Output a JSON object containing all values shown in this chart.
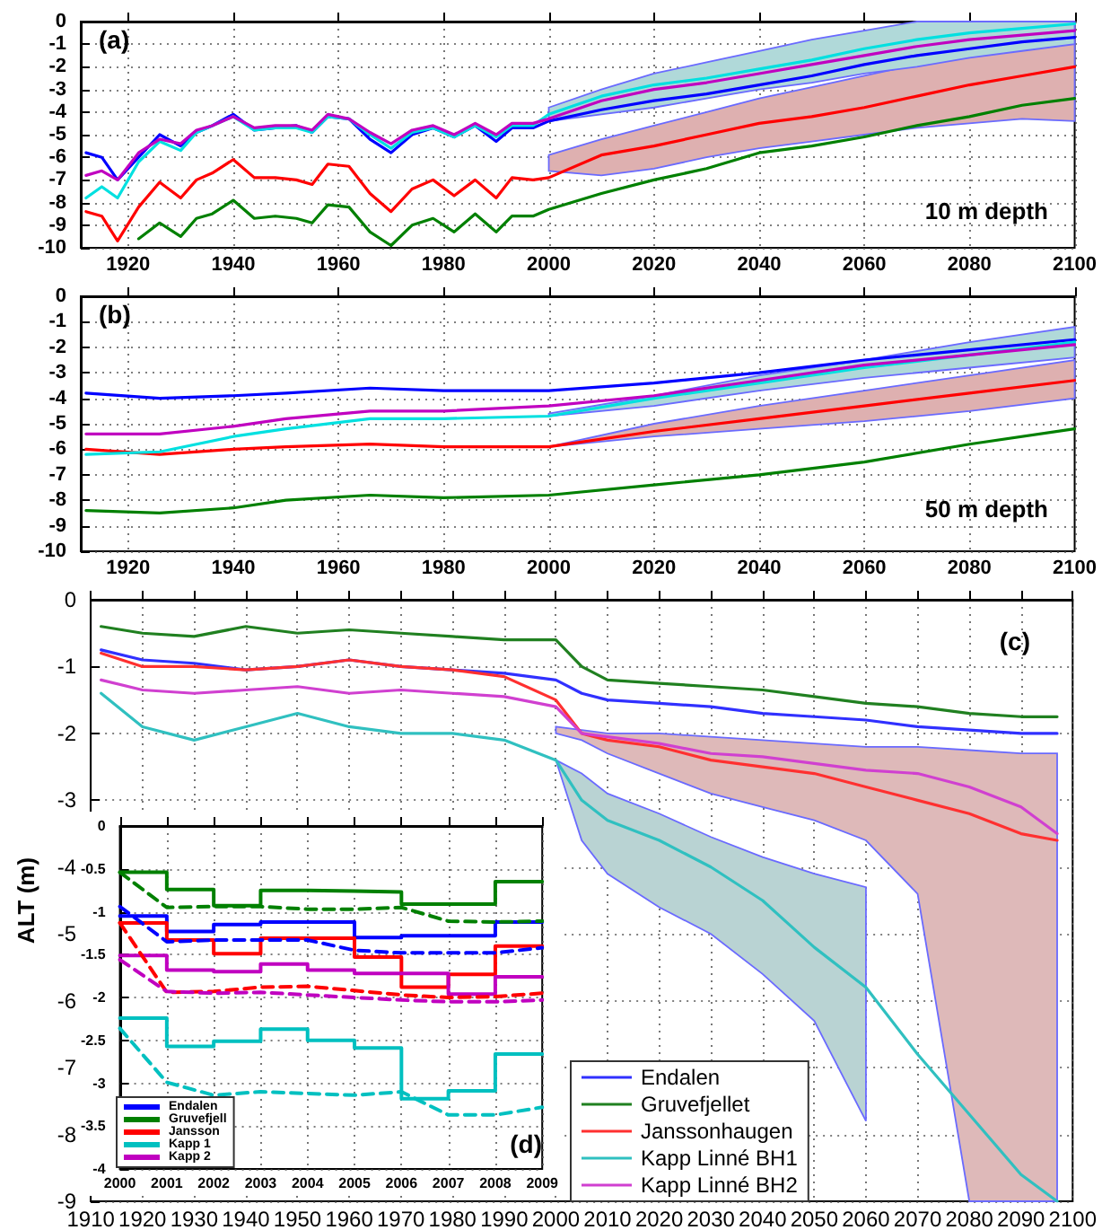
{
  "chart_data": [
    {
      "type": "line",
      "xlim": [
        1911,
        2100
      ],
      "ylim": [
        -10,
        0
      ],
      "xticks": [
        1920,
        1940,
        1960,
        1980,
        2000,
        2020,
        2040,
        2060,
        2080,
        2100
      ],
      "yticks": [
        -10,
        -9,
        -8,
        -7,
        -6,
        -5,
        -4,
        -3,
        -2,
        -1,
        0
      ],
      "grid": true,
      "marker": "none",
      "annotations": [
        "(a)",
        "10 m depth"
      ],
      "x": [
        1912,
        1915,
        1918,
        1922,
        1926,
        1930,
        1933,
        1936,
        1940,
        1944,
        1948,
        1952,
        1955,
        1958,
        1962,
        1966,
        1970,
        1974,
        1978,
        1982,
        1986,
        1990,
        1993,
        1997,
        2000,
        2010,
        2020,
        2030,
        2040,
        2050,
        2060,
        2070,
        2080,
        2090,
        2100
      ],
      "series": [
        {
          "color": "#0000ff",
          "values": [
            -5.8,
            -6.0,
            -7.0,
            -6.0,
            -5.0,
            -5.5,
            -4.9,
            -4.6,
            -4.1,
            -4.8,
            -4.7,
            -4.6,
            -4.9,
            -4.2,
            -4.3,
            -5.2,
            -5.8,
            -5.0,
            -4.7,
            -5.1,
            -4.6,
            -5.3,
            -4.7,
            -4.7,
            -4.4,
            -3.9,
            -3.5,
            -3.2,
            -2.8,
            -2.4,
            -1.9,
            -1.5,
            -1.2,
            -0.9,
            -0.7
          ]
        },
        {
          "color": "#008000",
          "values": [
            null,
            null,
            null,
            -9.6,
            -8.9,
            -9.5,
            -8.7,
            -8.5,
            -7.9,
            -8.7,
            -8.6,
            -8.7,
            -8.9,
            -8.1,
            -8.2,
            -9.3,
            -9.9,
            -9.0,
            -8.7,
            -9.3,
            -8.5,
            -9.3,
            -8.6,
            -8.6,
            -8.3,
            -7.6,
            -7.0,
            -6.5,
            -5.8,
            -5.5,
            -5.1,
            -4.6,
            -4.2,
            -3.7,
            -3.4
          ]
        },
        {
          "color": "#ff0000",
          "values": [
            -8.4,
            -8.6,
            -9.7,
            -8.2,
            -7.1,
            -7.8,
            -7.0,
            -6.7,
            -6.1,
            -6.9,
            -6.9,
            -7.0,
            -7.2,
            -6.3,
            -6.4,
            -7.6,
            -8.4,
            -7.4,
            -7.0,
            -7.7,
            -7.0,
            -7.8,
            -6.9,
            -7.0,
            -6.9,
            -5.9,
            -5.5,
            -5.0,
            -4.5,
            -4.2,
            -3.8,
            -3.3,
            -2.8,
            -2.4,
            -2.0
          ],
          "lower": [
            null,
            null,
            null,
            null,
            null,
            null,
            null,
            null,
            null,
            null,
            null,
            null,
            null,
            null,
            null,
            null,
            null,
            null,
            null,
            null,
            null,
            null,
            null,
            null,
            -6.6,
            -6.8,
            -6.5,
            -6.0,
            -5.6,
            -5.3,
            -5.0,
            -4.7,
            -4.5,
            -4.3,
            -4.4
          ],
          "upper": [
            null,
            null,
            null,
            null,
            null,
            null,
            null,
            null,
            null,
            null,
            null,
            null,
            null,
            null,
            null,
            null,
            null,
            null,
            null,
            null,
            null,
            null,
            null,
            null,
            -5.9,
            -5.2,
            -4.6,
            -4.0,
            -3.4,
            -2.9,
            -2.4,
            -1.9,
            -1.5,
            -1.2,
            -0.9
          ]
        },
        {
          "color": "#00e0e0",
          "values": [
            -7.8,
            -7.3,
            -7.8,
            -6.2,
            -5.3,
            -5.7,
            -4.9,
            -4.6,
            -4.2,
            -4.8,
            -4.7,
            -4.7,
            -4.9,
            -4.2,
            -4.3,
            -5.0,
            -5.6,
            -4.9,
            -4.7,
            -5.1,
            -4.6,
            -5.1,
            -4.6,
            -4.6,
            -4.1,
            -3.3,
            -2.8,
            -2.5,
            -2.1,
            -1.7,
            -1.2,
            -0.8,
            -0.5,
            -0.3,
            -0.1
          ],
          "lower": [
            null,
            null,
            null,
            null,
            null,
            null,
            null,
            null,
            null,
            null,
            null,
            null,
            null,
            null,
            null,
            null,
            null,
            null,
            null,
            null,
            null,
            null,
            null,
            null,
            -4.4,
            -4.1,
            -3.8,
            -3.4,
            -3.0,
            -2.7,
            -2.3,
            -2.0,
            -1.6,
            -1.3,
            -1.0
          ],
          "upper": [
            null,
            null,
            null,
            null,
            null,
            null,
            null,
            null,
            null,
            null,
            null,
            null,
            null,
            null,
            null,
            null,
            null,
            null,
            null,
            null,
            null,
            null,
            null,
            null,
            -3.8,
            -3.0,
            -2.3,
            -1.8,
            -1.3,
            -0.8,
            -0.4,
            0,
            0,
            0,
            0
          ]
        },
        {
          "color": "#c000c0",
          "values": [
            -6.8,
            -6.6,
            -7.0,
            -5.8,
            -5.2,
            -5.4,
            -4.8,
            -4.6,
            -4.2,
            -4.7,
            -4.6,
            -4.6,
            -4.8,
            -4.1,
            -4.3,
            -4.9,
            -5.4,
            -4.8,
            -4.6,
            -5.0,
            -4.5,
            -5.0,
            -4.5,
            -4.5,
            -4.3,
            -3.5,
            -3.0,
            -2.7,
            -2.3,
            -1.9,
            -1.5,
            -1.1,
            -0.8,
            -0.6,
            -0.4
          ]
        }
      ]
    },
    {
      "type": "line",
      "xlim": [
        1911,
        2100
      ],
      "ylim": [
        -10,
        0
      ],
      "xticks": [
        1920,
        1940,
        1960,
        1980,
        2000,
        2020,
        2040,
        2060,
        2080,
        2100
      ],
      "yticks": [
        -10,
        -9,
        -8,
        -7,
        -6,
        -5,
        -4,
        -3,
        -2,
        -1,
        0
      ],
      "grid": true,
      "marker": "none",
      "annotations": [
        "(b)",
        "50 m depth"
      ],
      "x": [
        1912,
        1926,
        1940,
        1950,
        1966,
        1980,
        2000,
        2020,
        2040,
        2060,
        2080,
        2100
      ],
      "series": [
        {
          "color": "#0000ff",
          "values": [
            -3.8,
            -4.0,
            -3.9,
            -3.8,
            -3.6,
            -3.7,
            -3.7,
            -3.4,
            -3.0,
            -2.5,
            -2.1,
            -1.7
          ]
        },
        {
          "color": "#008000",
          "values": [
            -8.4,
            -8.5,
            -8.3,
            -8.0,
            -7.8,
            -7.9,
            -7.8,
            -7.4,
            -7.0,
            -6.5,
            -5.8,
            -5.2
          ]
        },
        {
          "color": "#ff0000",
          "values": [
            -6.0,
            -6.2,
            -6.0,
            -5.9,
            -5.8,
            -5.9,
            -5.9,
            -5.3,
            -4.8,
            -4.3,
            -3.8,
            -3.3
          ],
          "lower": [
            null,
            null,
            null,
            null,
            null,
            null,
            -5.9,
            -5.5,
            -5.2,
            -4.9,
            -4.5,
            -4.0
          ],
          "upper": [
            null,
            null,
            null,
            null,
            null,
            null,
            -5.9,
            -5.0,
            -4.3,
            -3.7,
            -3.1,
            -2.5
          ]
        },
        {
          "color": "#00e0e0",
          "values": [
            -6.2,
            -6.1,
            -5.5,
            -5.2,
            -4.8,
            -4.8,
            -4.7,
            -4.0,
            -3.4,
            -2.8,
            -2.3,
            -1.8
          ],
          "lower": [
            null,
            null,
            null,
            null,
            null,
            null,
            -4.7,
            -4.3,
            -3.7,
            -3.2,
            -2.8,
            -2.4
          ],
          "upper": [
            null,
            null,
            null,
            null,
            null,
            null,
            -4.6,
            -3.9,
            -3.1,
            -2.5,
            -1.8,
            -1.2
          ]
        },
        {
          "color": "#c000c0",
          "values": [
            -5.4,
            -5.4,
            -5.1,
            -4.8,
            -4.5,
            -4.5,
            -4.3,
            -3.9,
            -3.3,
            -2.7,
            -2.3,
            -1.9
          ]
        }
      ]
    },
    {
      "type": "line",
      "xlim": [
        1910,
        2100
      ],
      "ylim": [
        -9,
        0
      ],
      "xticks": [
        1910,
        1920,
        1930,
        1940,
        1950,
        1960,
        1970,
        1980,
        1990,
        2000,
        2010,
        2020,
        2030,
        2040,
        2050,
        2060,
        2070,
        2080,
        2090,
        2100
      ],
      "yticks": [
        -9,
        -8,
        -7,
        -6,
        -5,
        -4,
        -3,
        -2,
        -1,
        0
      ],
      "ylabel": "ALT (m)",
      "grid": true,
      "marker": "none",
      "legend": "bottom",
      "annotations": [
        "(c)"
      ],
      "x": [
        1912,
        1920,
        1930,
        1940,
        1950,
        1960,
        1970,
        1980,
        1990,
        2000,
        2005,
        2010,
        2020,
        2030,
        2040,
        2050,
        2060,
        2070,
        2080,
        2090,
        2097
      ],
      "series": [
        {
          "name": "Endalen",
          "color": "#3030ff",
          "values": [
            -0.75,
            -0.9,
            -0.95,
            -1.05,
            -1.0,
            -0.9,
            -1.0,
            -1.05,
            -1.1,
            -1.2,
            -1.4,
            -1.5,
            -1.55,
            -1.6,
            -1.7,
            -1.75,
            -1.8,
            -1.9,
            -1.95,
            -2.0,
            -2.0
          ]
        },
        {
          "name": "Gruvefjellet",
          "color": "#208020",
          "values": [
            -0.4,
            -0.5,
            -0.55,
            -0.4,
            -0.5,
            -0.45,
            -0.5,
            -0.55,
            -0.6,
            -0.6,
            -1.0,
            -1.2,
            -1.25,
            -1.3,
            -1.35,
            -1.45,
            -1.55,
            -1.6,
            -1.7,
            -1.75,
            -1.75
          ]
        },
        {
          "name": "Janssonhaugen",
          "color": "#ff3030",
          "values": [
            -0.8,
            -1.0,
            -1.0,
            -1.05,
            -1.0,
            -0.9,
            -1.0,
            -1.05,
            -1.15,
            -1.5,
            -2.0,
            -2.1,
            -2.2,
            -2.4,
            -2.5,
            -2.6,
            -2.8,
            -3.0,
            -3.2,
            -3.5,
            -3.6
          ],
          "lower": [
            null,
            null,
            null,
            null,
            null,
            null,
            null,
            null,
            null,
            -2.0,
            -2.1,
            -2.3,
            -2.6,
            -2.9,
            -3.1,
            -3.3,
            -3.6,
            -4.4,
            -9.0,
            -9.0,
            -9.0
          ],
          "upper": [
            null,
            null,
            null,
            null,
            null,
            null,
            null,
            null,
            null,
            -1.9,
            -1.95,
            -2.0,
            -2.0,
            -2.05,
            -2.1,
            -2.15,
            -2.2,
            -2.2,
            -2.25,
            -2.3,
            -2.3
          ]
        },
        {
          "name": "Kapp Linné BH1",
          "color": "#30c0c0",
          "values": [
            -1.4,
            -1.9,
            -2.1,
            -1.9,
            -1.7,
            -1.9,
            -2.0,
            -2.0,
            -2.1,
            -2.4,
            -3.0,
            -3.3,
            -3.6,
            -4.0,
            -4.5,
            -5.2,
            -5.8,
            -6.8,
            -7.7,
            -8.6,
            -9.0
          ],
          "lower": [
            null,
            null,
            null,
            null,
            null,
            null,
            null,
            null,
            null,
            -2.4,
            -3.6,
            -4.1,
            -4.6,
            -5.0,
            -5.6,
            -6.3,
            -7.8,
            null,
            null,
            null,
            null
          ],
          "upper": [
            null,
            null,
            null,
            null,
            null,
            null,
            null,
            null,
            null,
            -2.4,
            -2.6,
            -2.9,
            -3.2,
            -3.55,
            -3.85,
            -4.1,
            -4.3,
            null,
            null,
            null,
            null
          ]
        },
        {
          "name": "Kapp Linné BH2",
          "color": "#d040d0",
          "values": [
            -1.2,
            -1.35,
            -1.4,
            -1.35,
            -1.3,
            -1.4,
            -1.35,
            -1.4,
            -1.45,
            -1.6,
            -2.0,
            -2.05,
            -2.15,
            -2.3,
            -2.35,
            -2.45,
            -2.55,
            -2.6,
            -2.8,
            -3.1,
            -3.5
          ]
        }
      ]
    },
    {
      "type": "step",
      "xlim": [
        2000,
        2009
      ],
      "ylim": [
        -4,
        0
      ],
      "xticks": [
        2000,
        2001,
        2002,
        2003,
        2004,
        2005,
        2006,
        2007,
        2008,
        2009
      ],
      "yticks": [
        -4,
        -3.5,
        -3,
        -2.5,
        -2,
        -1.5,
        -1,
        -0.5,
        0
      ],
      "grid": true,
      "marker": "none",
      "legend": "bottom left",
      "annotations": [
        "(d)"
      ],
      "x": [
        2000,
        2001,
        2002,
        2003,
        2004,
        2005,
        2006,
        2007,
        2008,
        2009
      ],
      "series": [
        {
          "name": "Endalen",
          "color": "#0000ff",
          "values": [
            -1.05,
            -1.23,
            -1.15,
            -1.12,
            -1.12,
            -1.3,
            -1.28,
            -1.28,
            -1.12,
            -1.12
          ]
        },
        {
          "name": "Gruvefjell",
          "color": "#008000",
          "values": [
            -0.54,
            -0.74,
            -0.93,
            -0.75,
            -0.76,
            -0.77,
            -0.91,
            -0.91,
            -0.65,
            -0.65
          ]
        },
        {
          "name": "Jansson",
          "color": "#ff0000",
          "values": [
            -1.13,
            -1.33,
            -1.49,
            -1.31,
            -1.31,
            -1.53,
            -1.88,
            -1.73,
            -1.4,
            -1.4
          ]
        },
        {
          "name": "Kapp 1",
          "color": "#00c0c0",
          "values": [
            -2.24,
            -2.57,
            -2.51,
            -2.37,
            -2.5,
            -2.59,
            -3.18,
            -3.09,
            -2.66,
            -2.66
          ]
        },
        {
          "name": "Kapp 2",
          "color": "#c000c0",
          "values": [
            -1.51,
            -1.68,
            -1.7,
            -1.61,
            -1.68,
            -1.72,
            -1.72,
            -1.96,
            -1.76,
            -1.76
          ]
        },
        {
          "type": "line",
          "line_style": "dashed",
          "color": "#008000",
          "values": [
            -0.54,
            -0.95,
            -0.94,
            -0.94,
            -0.97,
            -0.97,
            -0.95,
            -1.11,
            -1.12,
            -1.11
          ]
        },
        {
          "type": "line",
          "line_style": "dashed",
          "color": "#0000ff",
          "values": [
            -0.94,
            -1.35,
            -1.33,
            -1.33,
            -1.33,
            -1.45,
            -1.48,
            -1.48,
            -1.48,
            -1.42
          ]
        },
        {
          "type": "line",
          "line_style": "dashed",
          "color": "#ff0000",
          "values": [
            -1.13,
            -1.94,
            -1.93,
            -1.88,
            -1.87,
            -1.92,
            -1.97,
            -2.0,
            -1.99,
            -1.95
          ]
        },
        {
          "type": "line",
          "line_style": "dashed",
          "color": "#c000c0",
          "values": [
            -1.56,
            -1.93,
            -1.95,
            -1.94,
            -1.97,
            -2.0,
            -2.03,
            -2.05,
            -2.05,
            -2.03
          ]
        },
        {
          "type": "line",
          "line_style": "dashed",
          "color": "#00c0c0",
          "values": [
            -2.36,
            -2.99,
            -3.14,
            -3.1,
            -3.12,
            -3.14,
            -3.1,
            -3.37,
            -3.37,
            -3.28
          ]
        }
      ]
    }
  ]
}
